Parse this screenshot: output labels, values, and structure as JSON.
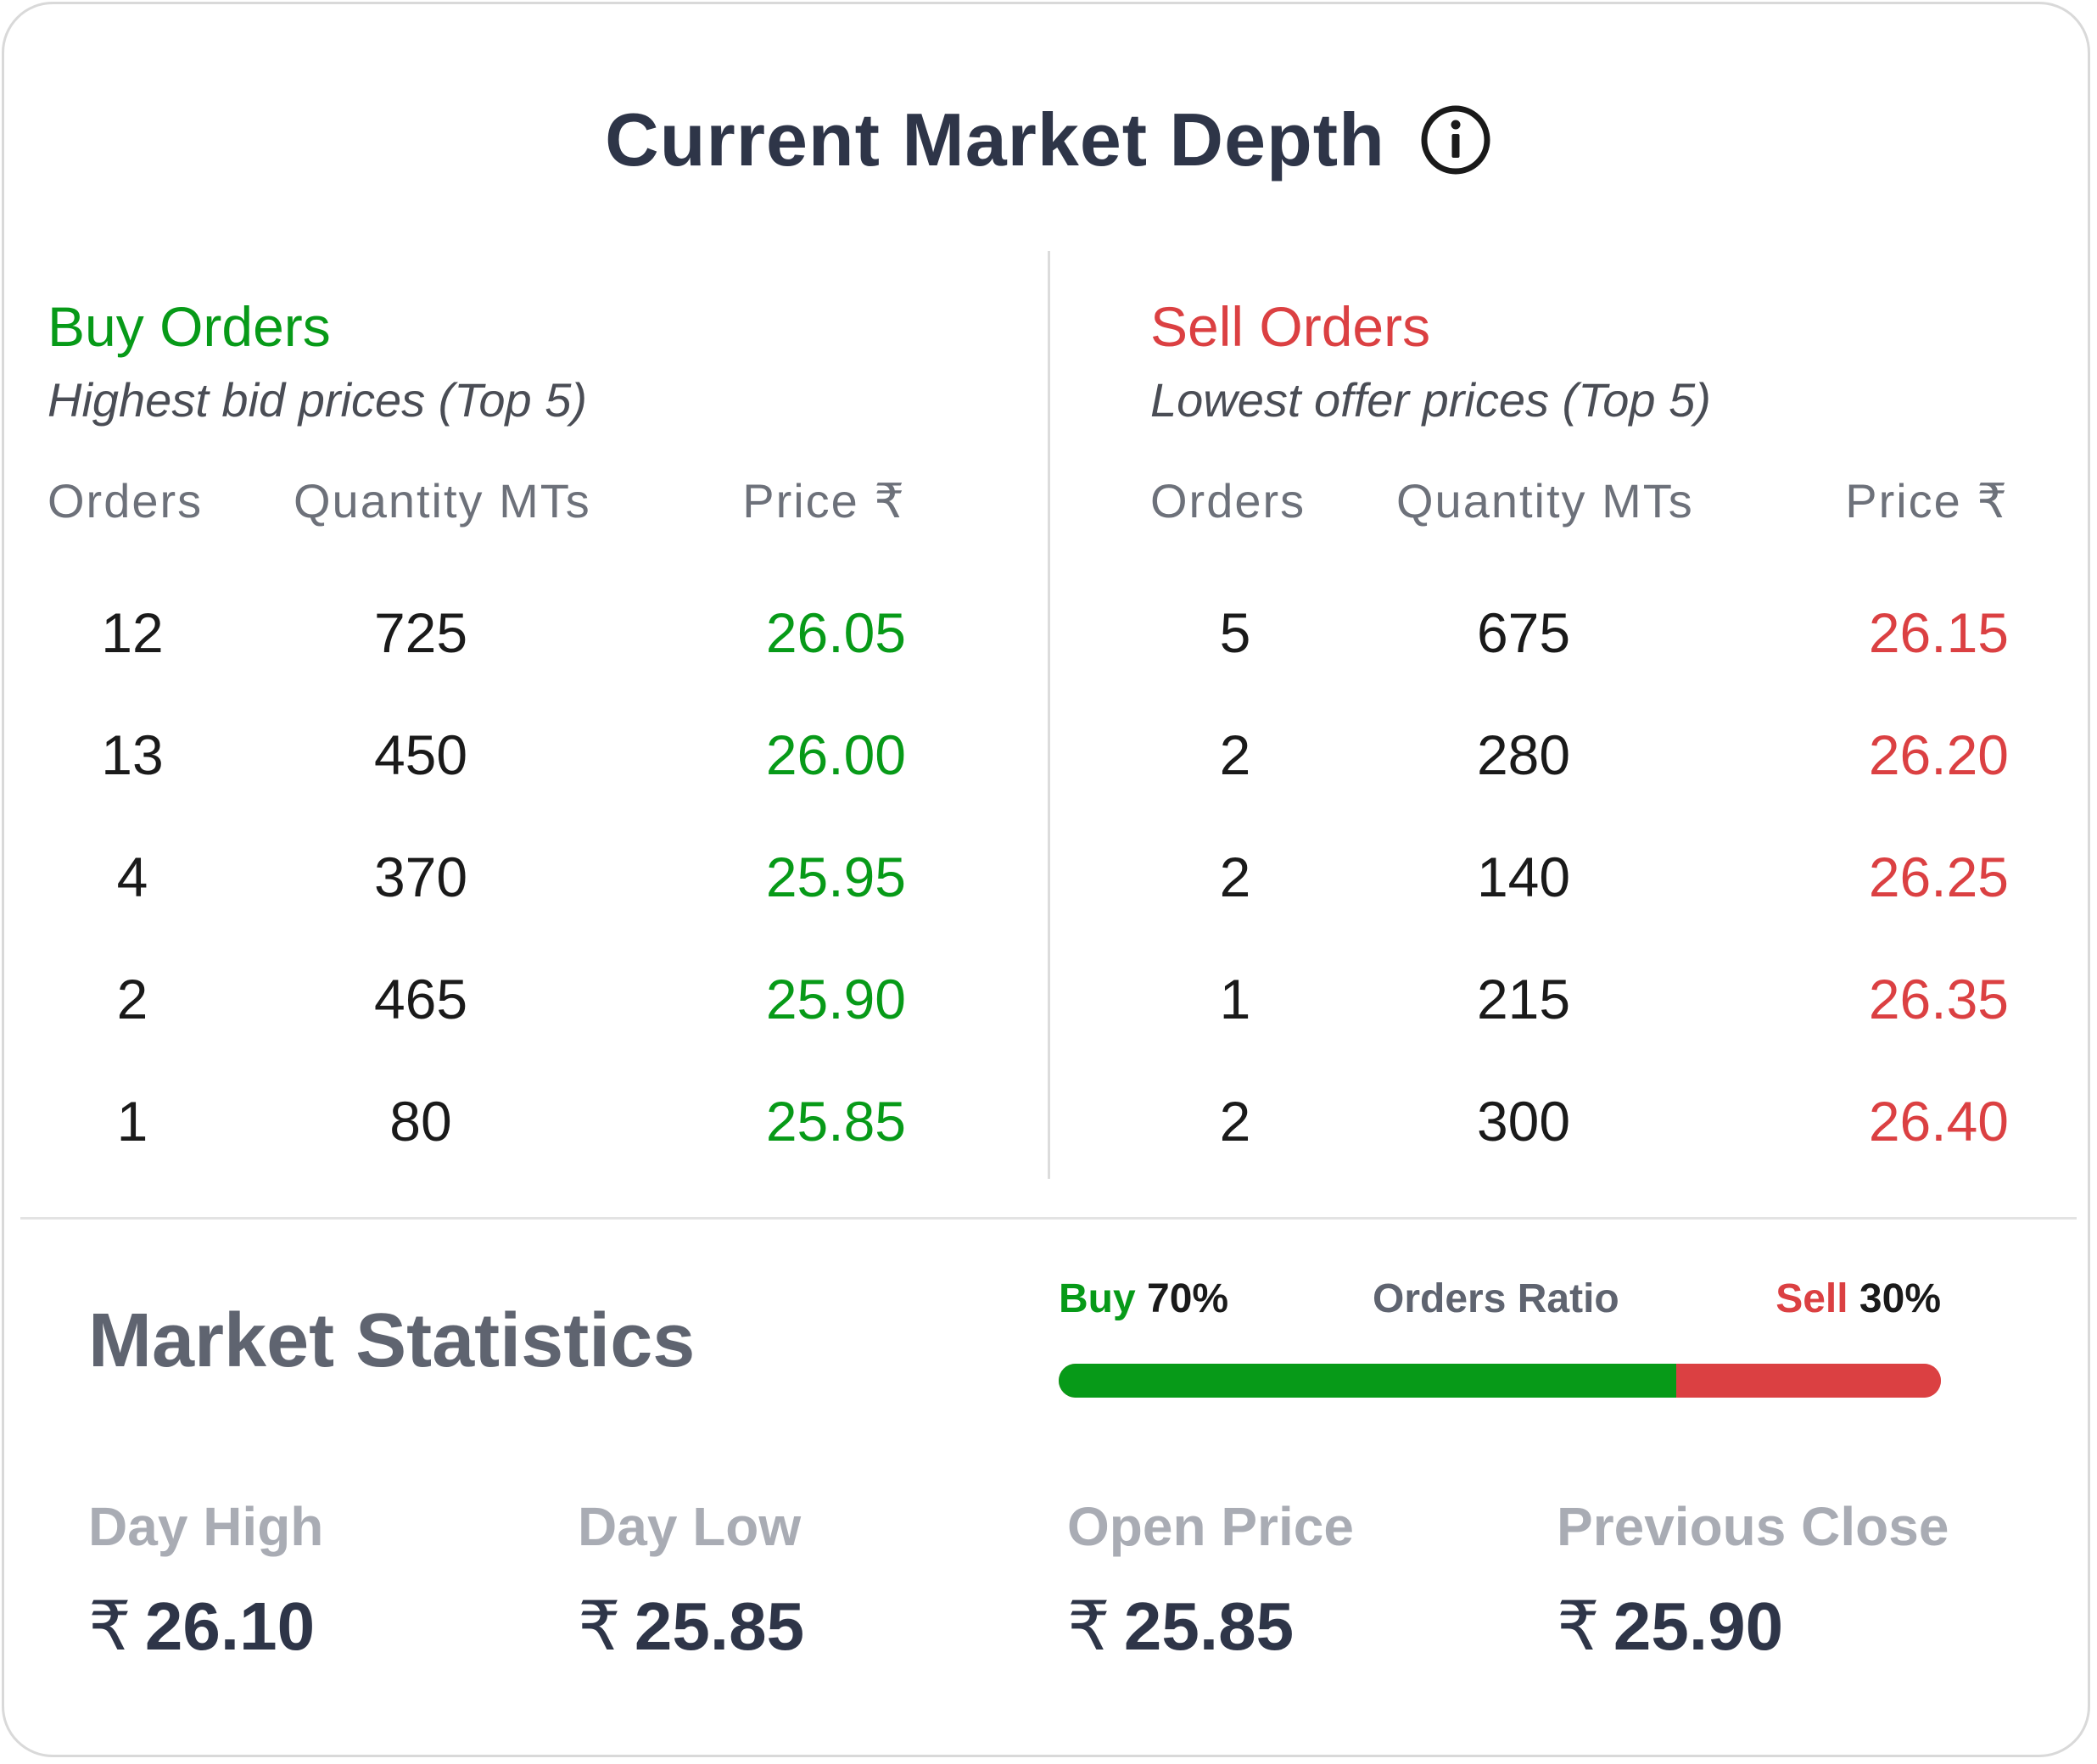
{
  "header": {
    "title": "Current Market Depth",
    "info_icon": "info-circle-icon"
  },
  "buy": {
    "title": "Buy Orders",
    "subtitle": "Highest bid prices (Top 5)",
    "columns": {
      "orders": "Orders",
      "quantity": "Quantity MTs",
      "price": "Price ₹"
    },
    "rows": [
      {
        "orders": "12",
        "quantity": "725",
        "price": "26.05"
      },
      {
        "orders": "13",
        "quantity": "450",
        "price": "26.00"
      },
      {
        "orders": "4",
        "quantity": "370",
        "price": "25.95"
      },
      {
        "orders": "2",
        "quantity": "465",
        "price": "25.90"
      },
      {
        "orders": "1",
        "quantity": "80",
        "price": "25.85"
      }
    ]
  },
  "sell": {
    "title": "Sell Orders",
    "subtitle": "Lowest offer prices (Top 5)",
    "columns": {
      "orders": "Orders",
      "quantity": "Quantity MTs",
      "price": "Price ₹"
    },
    "rows": [
      {
        "orders": "5",
        "quantity": "675",
        "price": "26.15"
      },
      {
        "orders": "2",
        "quantity": "280",
        "price": "26.20"
      },
      {
        "orders": "2",
        "quantity": "140",
        "price": "26.25"
      },
      {
        "orders": "1",
        "quantity": "215",
        "price": "26.35"
      },
      {
        "orders": "2",
        "quantity": "300",
        "price": "26.40"
      }
    ]
  },
  "stats": {
    "title": "Market Statistics",
    "ratio": {
      "buy_label": "Buy",
      "buy_value": "70%",
      "label": "Orders Ratio",
      "sell_label": "Sell",
      "sell_value": "30%",
      "buy_fraction": 0.7
    },
    "currency": "₹",
    "items": [
      {
        "label": "Day High",
        "value": "26.10"
      },
      {
        "label": "Day Low",
        "value": "25.85"
      },
      {
        "label": "Open Price",
        "value": "25.85"
      },
      {
        "label": "Previous Close",
        "value": "25.90"
      }
    ]
  },
  "colors": {
    "buy": "#079a18",
    "sell": "#db4042",
    "title": "#2e3548"
  }
}
